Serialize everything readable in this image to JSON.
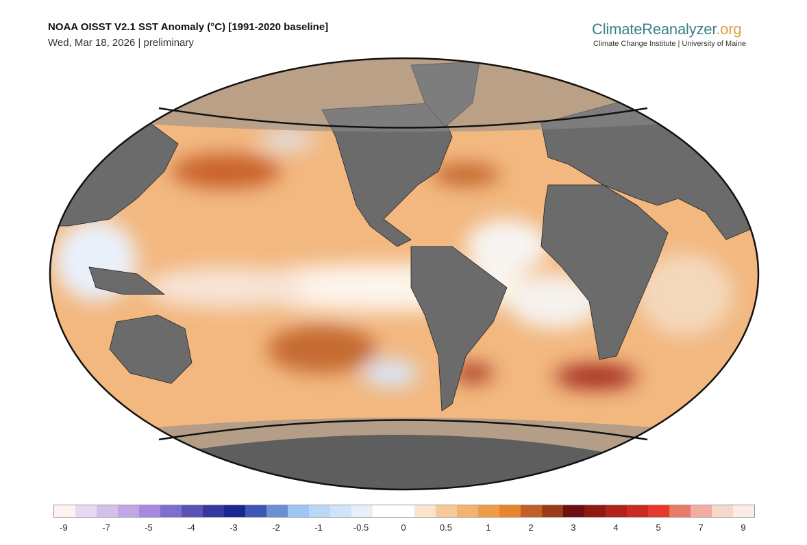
{
  "header": {
    "title": "NOAA OISST V2.1 SST Anomaly (°C) [1991-2020 baseline]",
    "subtitle": "Wed, Mar 18, 2026 | preliminary"
  },
  "logo": {
    "name": "ClimateReanalyzer",
    "suffix": ".org",
    "tagline": "Climate Change Institute | University of Maine"
  },
  "map": {
    "projection": "Robinson-like ellipse",
    "variable": "SST anomaly",
    "land_color": "#6b6b6b",
    "sea_ice_mask_color": "#8c8c8c"
  },
  "colorbar": {
    "unit": "°C",
    "labels": [
      "-9",
      "-7",
      "-5",
      "-4",
      "-3",
      "-2",
      "-1",
      "-0.5",
      "0",
      "0.5",
      "1",
      "2",
      "3",
      "4",
      "5",
      "7",
      "9"
    ],
    "colors": [
      "#fdf1f1",
      "#e6d8f0",
      "#d4bfe8",
      "#c1a6e4",
      "#a78ae0",
      "#7e6fcf",
      "#5a52b5",
      "#35389f",
      "#1a2790",
      "#3d57b5",
      "#6b8fd4",
      "#9cc6f4",
      "#b8d8f6",
      "#cfe4f8",
      "#e6f0fb",
      "#ffffff",
      "#ffffff",
      "#fbe3cc",
      "#f6c99a",
      "#f2b36e",
      "#ef9c48",
      "#e8852a",
      "#c05f26",
      "#9a3b1c",
      "#6e1010",
      "#8e1a12",
      "#b0221a",
      "#cc2a20",
      "#e8382a",
      "#e87a6a",
      "#f2ada0",
      "#f7d8c8",
      "#fbecea"
    ]
  }
}
